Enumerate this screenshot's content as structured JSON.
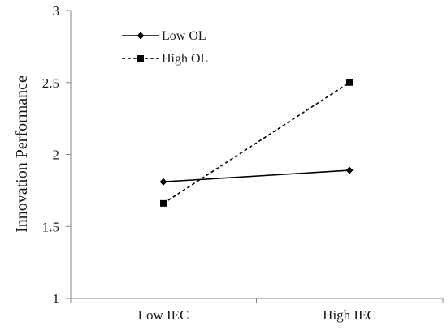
{
  "chart_data": {
    "type": "line",
    "title": "",
    "xlabel": "",
    "ylabel": "Innovation Performance",
    "categories": [
      "Low IEC",
      "High IEC"
    ],
    "ylim": [
      1,
      3
    ],
    "yticks": [
      1,
      1.5,
      2,
      2.5,
      3
    ],
    "ytick_labels": [
      "1",
      "1.5",
      "2",
      "2.5",
      "3"
    ],
    "grid": false,
    "legend_position": "top-left",
    "series": [
      {
        "name": "Low OL",
        "values": [
          1.81,
          1.89
        ],
        "line_style": "solid",
        "marker": "diamond",
        "color": "#000000"
      },
      {
        "name": "High OL",
        "values": [
          1.66,
          2.5
        ],
        "line_style": "dashed",
        "marker": "square",
        "color": "#000000"
      }
    ]
  }
}
